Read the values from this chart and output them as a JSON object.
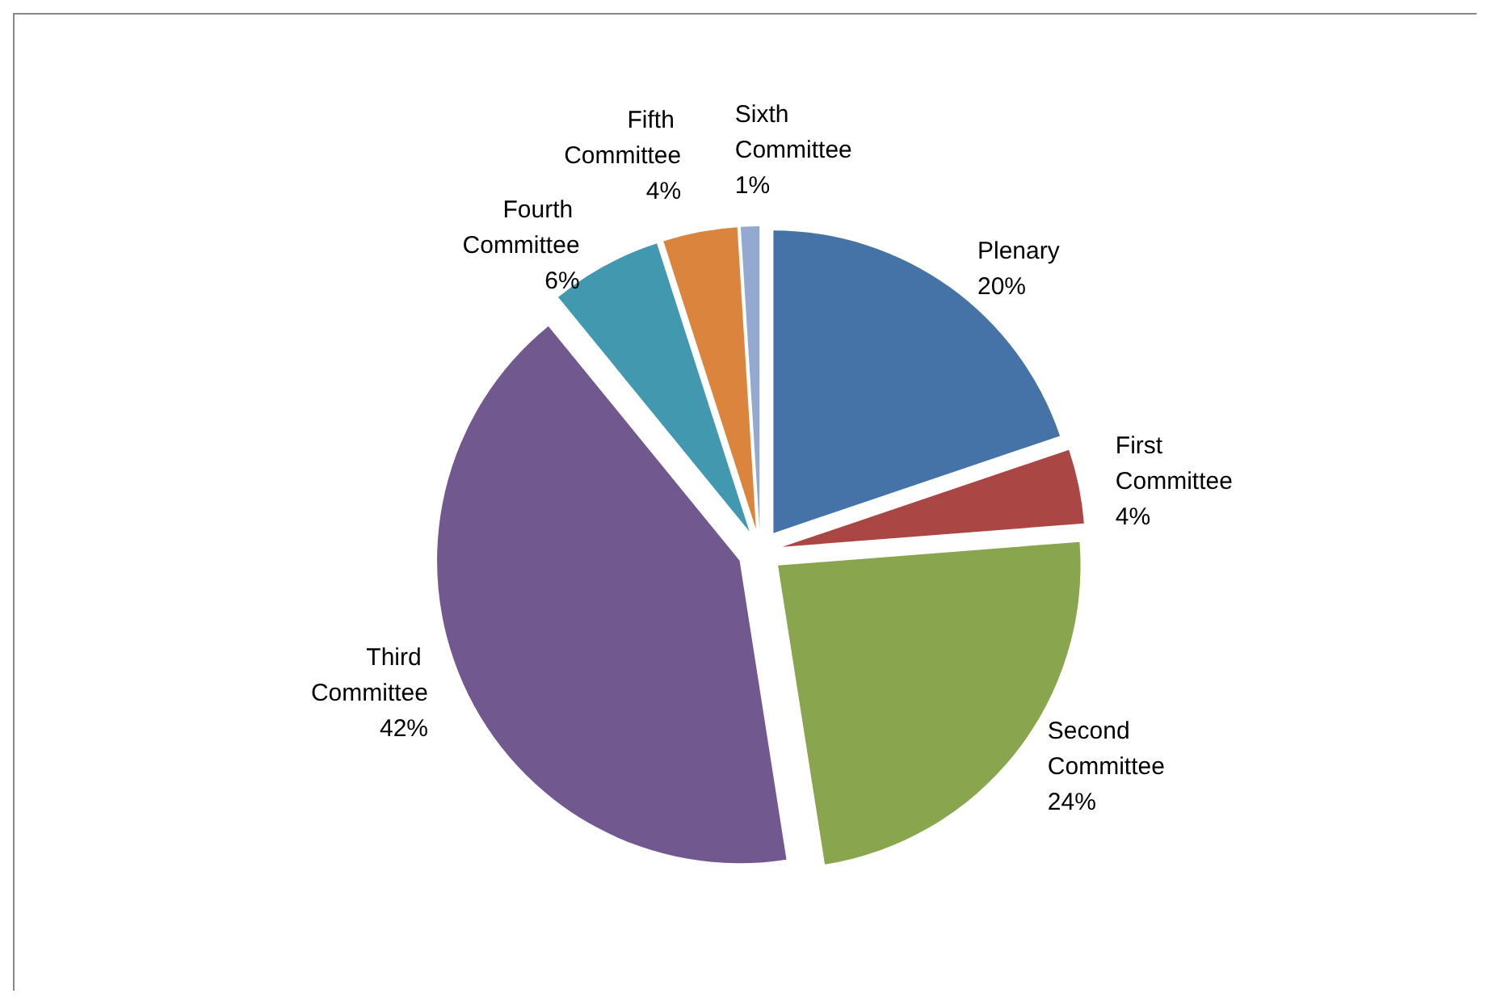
{
  "chart_data": {
    "type": "pie",
    "categories": [
      "Plenary",
      "First Committee",
      "Second Committee",
      "Third Committee",
      "Fourth Committee",
      "Fifth Committee",
      "Sixth Committee"
    ],
    "values": [
      20,
      4,
      24,
      42,
      6,
      4,
      1
    ],
    "value_labels": [
      "20%",
      "4%",
      "24%",
      "42%",
      "6%",
      "4%",
      "1%"
    ],
    "colors": [
      "#4572a7",
      "#aa4643",
      "#89a54e",
      "#71588f",
      "#4198af",
      "#db843d",
      "#93a9cf"
    ],
    "legend": false
  }
}
